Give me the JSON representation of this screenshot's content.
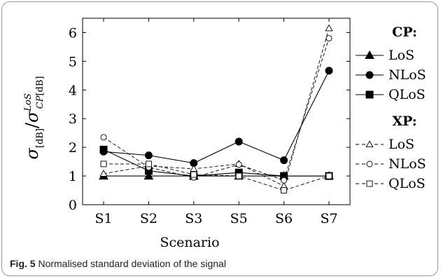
{
  "chart_data": {
    "type": "line",
    "categories": [
      "S1",
      "S2",
      "S3",
      "S5",
      "S6",
      "S7"
    ],
    "xlabel": "Scenario",
    "ylabel": "σ[dB]/σ^LoS_CP[dB]",
    "ylim": [
      0,
      6.5
    ],
    "yticks": [
      0,
      1,
      2,
      3,
      4,
      5,
      6
    ],
    "grid": false,
    "legend_position": "right",
    "legend_groups": [
      {
        "title": "CP:",
        "entries": [
          "LoS",
          "NLoS",
          "QLoS"
        ]
      },
      {
        "title": "XP:",
        "entries": [
          "LoS",
          "NLoS",
          "QLoS"
        ]
      }
    ],
    "series": [
      {
        "name": "LoS",
        "group": "CP",
        "style": "solid",
        "marker": "triangle-filled",
        "values": [
          1.0,
          1.0,
          1.0,
          1.0,
          1.0,
          1.0
        ]
      },
      {
        "name": "NLoS",
        "group": "CP",
        "style": "solid",
        "marker": "circle-filled",
        "values": [
          1.85,
          1.72,
          1.45,
          2.2,
          1.55,
          4.67
        ]
      },
      {
        "name": "QLoS",
        "group": "CP",
        "style": "solid",
        "marker": "square-filled",
        "values": [
          1.92,
          1.18,
          1.0,
          1.12,
          1.0,
          1.0
        ]
      },
      {
        "name": "LoS",
        "group": "XP",
        "style": "dashed",
        "marker": "triangle-open",
        "values": [
          1.08,
          1.35,
          1.25,
          1.42,
          0.65,
          6.15
        ]
      },
      {
        "name": "NLoS",
        "group": "XP",
        "style": "dashed",
        "marker": "circle-open",
        "values": [
          2.35,
          1.3,
          0.95,
          1.4,
          0.85,
          5.8
        ]
      },
      {
        "name": "QLoS",
        "group": "XP",
        "style": "dashed",
        "marker": "square-open",
        "values": [
          1.42,
          1.42,
          1.05,
          1.0,
          0.5,
          1.0
        ]
      }
    ]
  },
  "caption": {
    "label": "Fig. 5",
    "text": "Normalised standard deviation of the signal"
  }
}
